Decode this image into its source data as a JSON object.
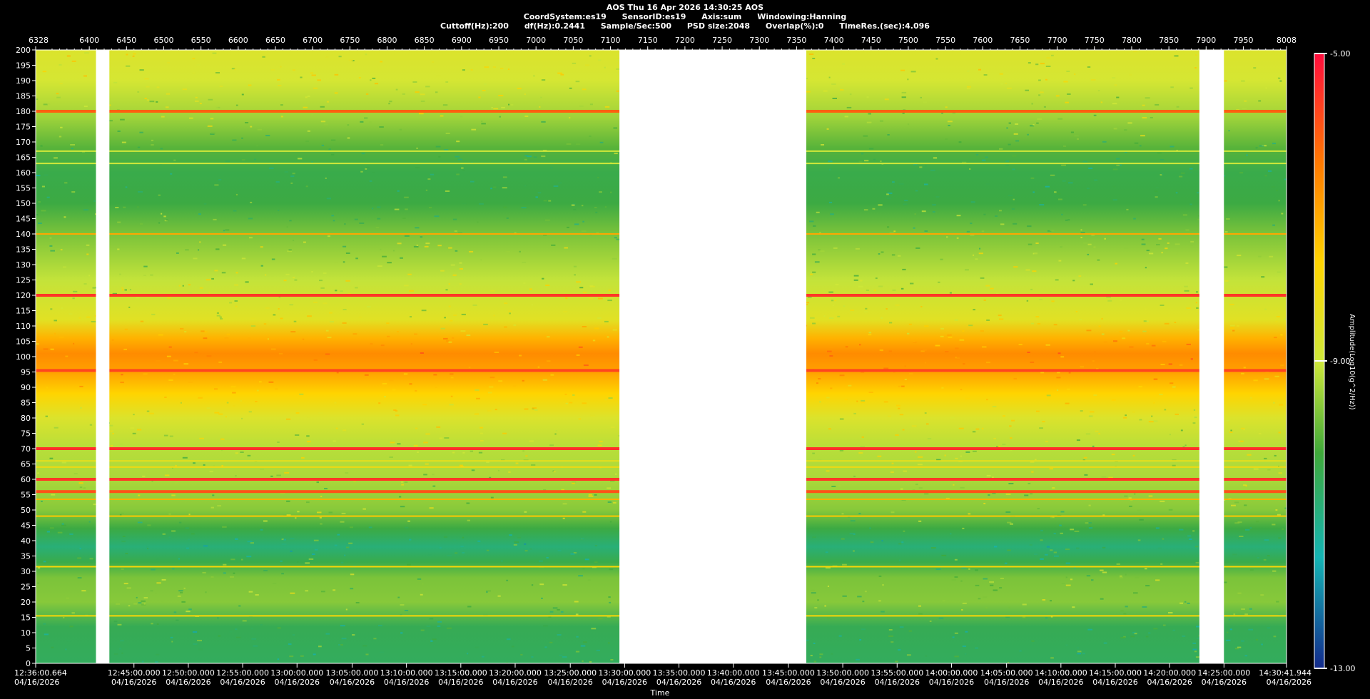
{
  "header": {
    "title": "AOS  Thu 16 Apr 2026 14:30:25  AOS",
    "line2": [
      "CoordSystem:es19",
      "SensorID:es19",
      "Axis:sum",
      "Windowing:Hanning"
    ],
    "line3": [
      "Cuttoff(Hz):200",
      "df(Hz):0.2441",
      "Sample/Sec:500",
      "PSD size:2048",
      "Overlap(%):0",
      "TimeRes.(sec):4.096"
    ]
  },
  "chart_data": {
    "type": "heatmap",
    "xlabel": "Time",
    "colorbar_label": "Amplitude(Log10(g^2/Hz))",
    "colorbar_ticks": [
      "-5.00",
      "-9.00",
      "-13.00"
    ],
    "colorbar_range": [
      -13,
      -5
    ],
    "ylim": [
      0,
      200
    ],
    "y_ticks": [
      0,
      5,
      10,
      15,
      20,
      25,
      30,
      35,
      40,
      45,
      50,
      55,
      60,
      65,
      70,
      75,
      80,
      85,
      90,
      95,
      100,
      105,
      110,
      115,
      120,
      125,
      130,
      135,
      140,
      145,
      150,
      155,
      160,
      165,
      170,
      175,
      180,
      185,
      190,
      195,
      200
    ],
    "top_axis_range": [
      6328,
      8008
    ],
    "top_ticks": [
      6328,
      6400,
      6450,
      6500,
      6550,
      6600,
      6650,
      6700,
      6750,
      6800,
      6850,
      6900,
      6950,
      7000,
      7050,
      7100,
      7150,
      7200,
      7250,
      7300,
      7350,
      7400,
      7450,
      7500,
      7550,
      7600,
      7650,
      7700,
      7750,
      7800,
      7850,
      7900,
      7950,
      8008
    ],
    "bottom_ticks": [
      {
        "time": "12:36:00.664",
        "date": "04/16/2026",
        "index": 6328
      },
      {
        "time": "12:45:00.000",
        "date": "04/16/2026",
        "index": 6460
      },
      {
        "time": "12:50:00.000",
        "date": "04/16/2026",
        "index": 6533
      },
      {
        "time": "12:55:00.000",
        "date": "04/16/2026",
        "index": 6606
      },
      {
        "time": "13:00:00.000",
        "date": "04/16/2026",
        "index": 6679
      },
      {
        "time": "13:05:00.000",
        "date": "04/16/2026",
        "index": 6753
      },
      {
        "time": "13:10:00.000",
        "date": "04/16/2026",
        "index": 6826
      },
      {
        "time": "13:15:00.000",
        "date": "04/16/2026",
        "index": 6899
      },
      {
        "time": "13:20:00.000",
        "date": "04/16/2026",
        "index": 6972
      },
      {
        "time": "13:25:00.000",
        "date": "04/16/2026",
        "index": 7046
      },
      {
        "time": "13:30:00.000",
        "date": "04/16/2026",
        "index": 7119
      },
      {
        "time": "13:35:00.000",
        "date": "04/16/2026",
        "index": 7192
      },
      {
        "time": "13:40:00.000",
        "date": "04/16/2026",
        "index": 7265
      },
      {
        "time": "13:45:00.000",
        "date": "04/16/2026",
        "index": 7339
      },
      {
        "time": "13:50:00.000",
        "date": "04/16/2026",
        "index": 7412
      },
      {
        "time": "13:55:00.000",
        "date": "04/16/2026",
        "index": 7485
      },
      {
        "time": "14:00:00.000",
        "date": "04/16/2026",
        "index": 7558
      },
      {
        "time": "14:05:00.000",
        "date": "04/16/2026",
        "index": 7632
      },
      {
        "time": "14:10:00.000",
        "date": "04/16/2026",
        "index": 7705
      },
      {
        "time": "14:15:00.000",
        "date": "04/16/2026",
        "index": 7778
      },
      {
        "time": "14:20:00.000",
        "date": "04/16/2026",
        "index": 7851
      },
      {
        "time": "14:25:00.000",
        "date": "04/16/2026",
        "index": 7924
      },
      {
        "time": "14:30:41.944",
        "date": "04/16/2026",
        "index": 8008
      }
    ],
    "data_gaps": [
      [
        6409,
        6427
      ],
      [
        7112,
        7363
      ],
      [
        7891,
        7924
      ]
    ],
    "background_profile": [
      {
        "hz": 0,
        "value": -10.6
      },
      {
        "hz": 12,
        "value": -10.5
      },
      {
        "hz": 20,
        "value": -9.6
      },
      {
        "hz": 28,
        "value": -9.7
      },
      {
        "hz": 33,
        "value": -10.4
      },
      {
        "hz": 38,
        "value": -10.9
      },
      {
        "hz": 44,
        "value": -10.3
      },
      {
        "hz": 50,
        "value": -9.6
      },
      {
        "hz": 60,
        "value": -9.3
      },
      {
        "hz": 70,
        "value": -9.2
      },
      {
        "hz": 80,
        "value": -8.8
      },
      {
        "hz": 88,
        "value": -8.2
      },
      {
        "hz": 95,
        "value": -7.3
      },
      {
        "hz": 101,
        "value": -6.9
      },
      {
        "hz": 106,
        "value": -7.6
      },
      {
        "hz": 112,
        "value": -8.7
      },
      {
        "hz": 125,
        "value": -9.1
      },
      {
        "hz": 140,
        "value": -9.7
      },
      {
        "hz": 150,
        "value": -10.3
      },
      {
        "hz": 160,
        "value": -10.4
      },
      {
        "hz": 168,
        "value": -10.0
      },
      {
        "hz": 178,
        "value": -9.4
      },
      {
        "hz": 190,
        "value": -8.9
      },
      {
        "hz": 200,
        "value": -8.8
      }
    ],
    "tonal_lines": [
      {
        "hz": 180,
        "value": -6.2
      },
      {
        "hz": 140,
        "value": -7.4
      },
      {
        "hz": 120,
        "value": -5.6
      },
      {
        "hz": 95.5,
        "value": -5.8
      },
      {
        "hz": 70,
        "value": -5.5
      },
      {
        "hz": 60,
        "value": -5.6
      },
      {
        "hz": 56,
        "value": -6.0
      },
      {
        "hz": 53.5,
        "value": -7.6
      },
      {
        "hz": 48,
        "value": -8.0
      },
      {
        "hz": 31.5,
        "value": -8.3
      },
      {
        "hz": 15.5,
        "value": -8.3
      },
      {
        "hz": 163,
        "value": -9.0
      },
      {
        "hz": 167,
        "value": -9.0
      },
      {
        "hz": 64,
        "value": -8.4
      },
      {
        "hz": 66,
        "value": -8.6
      }
    ]
  }
}
